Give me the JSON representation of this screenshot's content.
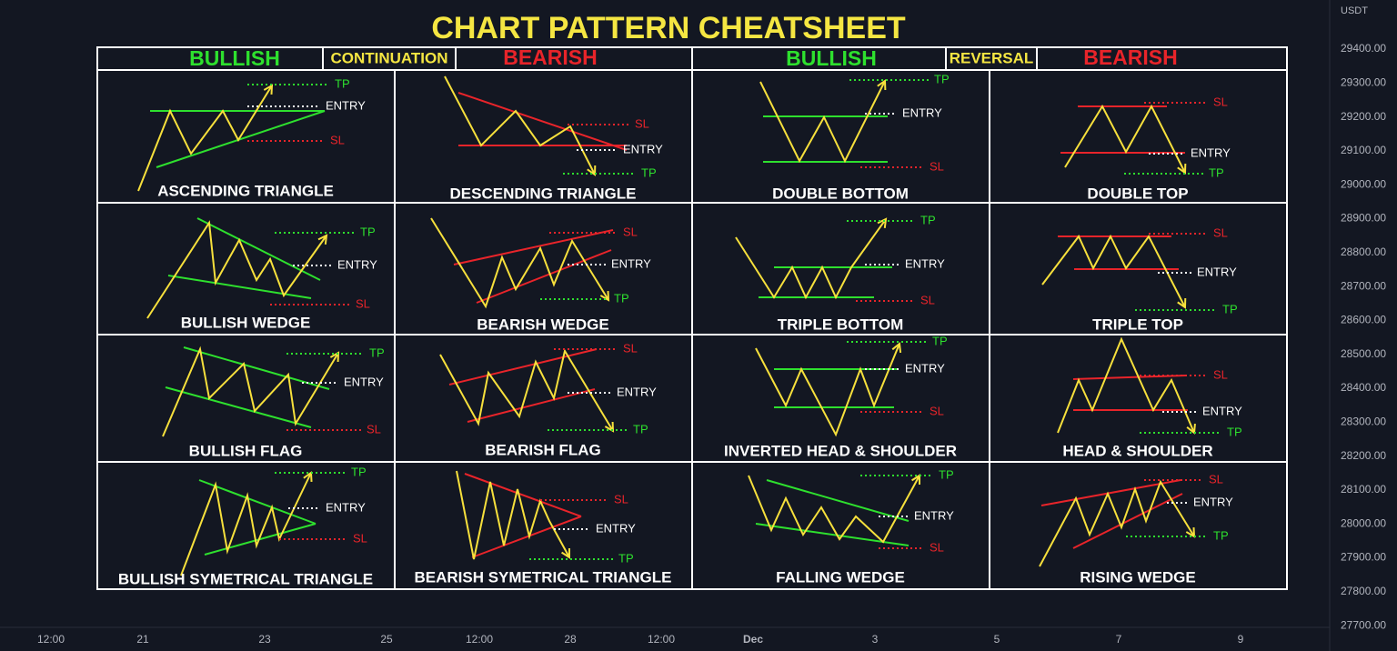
{
  "header": {
    "title": "CHART PATTERN CHEATSHEET",
    "sections": [
      {
        "bullish": "BULLISH",
        "label": "CONTINUATION",
        "bearish": "BEARISH"
      },
      {
        "bullish": "BULLISH",
        "label": "REVERSAL",
        "bearish": "BEARISH"
      }
    ]
  },
  "patterns": [
    {
      "name": "ASCENDING TRIANGLE",
      "tp": "TP",
      "entry": "ENTRY",
      "sl": "SL"
    },
    {
      "name": "DESCENDING TRIANGLE",
      "tp": "TP",
      "entry": "ENTRY",
      "sl": "SL"
    },
    {
      "name": "DOUBLE BOTTOM",
      "tp": "TP",
      "entry": "ENTRY",
      "sl": "SL"
    },
    {
      "name": "DOUBLE TOP",
      "tp": "TP",
      "entry": "ENTRY",
      "sl": "SL"
    },
    {
      "name": "BULLISH WEDGE",
      "tp": "TP",
      "entry": "ENTRY",
      "sl": "SL"
    },
    {
      "name": "BEARISH WEDGE",
      "tp": "TP",
      "entry": "ENTRY",
      "sl": "SL"
    },
    {
      "name": "TRIPLE BOTTOM",
      "tp": "TP",
      "entry": "ENTRY",
      "sl": "SL"
    },
    {
      "name": "TRIPLE TOP",
      "tp": "TP",
      "entry": "ENTRY",
      "sl": "SL"
    },
    {
      "name": "BULLISH FLAG",
      "tp": "TP",
      "entry": "ENTRY",
      "sl": "SL"
    },
    {
      "name": "BEARISH FLAG",
      "tp": "TP",
      "entry": "ENTRY",
      "sl": "SL"
    },
    {
      "name": "INVERTED HEAD & SHOULDER",
      "tp": "TP",
      "entry": "ENTRY",
      "sl": "SL"
    },
    {
      "name": "HEAD & SHOULDER",
      "tp": "TP",
      "entry": "ENTRY",
      "sl": "SL"
    },
    {
      "name": "BULLISH SYMETRICAL TRIANGLE",
      "tp": "TP",
      "entry": "ENTRY",
      "sl": "SL"
    },
    {
      "name": "BEARISH SYMETRICAL TRIANGLE",
      "tp": "TP",
      "entry": "ENTRY",
      "sl": "SL"
    },
    {
      "name": "FALLING WEDGE",
      "tp": "TP",
      "entry": "ENTRY",
      "sl": "SL"
    },
    {
      "name": "RISING WEDGE",
      "tp": "TP",
      "entry": "ENTRY",
      "sl": "SL"
    }
  ],
  "price_axis": {
    "currency": "USDT",
    "labels": [
      "29400.00",
      "29300.00",
      "29200.00",
      "29100.00",
      "29000.00",
      "28900.00",
      "28800.00",
      "28700.00",
      "28600.00",
      "28500.00",
      "28400.00",
      "28300.00",
      "28200.00",
      "28100.00",
      "28000.00",
      "27900.00",
      "27800.00",
      "27700.00"
    ]
  },
  "time_axis": {
    "labels": [
      "12:00",
      "21",
      "23",
      "25",
      "12:00",
      "28",
      "12:00",
      "Dec",
      "3",
      "5",
      "7",
      "9"
    ]
  }
}
